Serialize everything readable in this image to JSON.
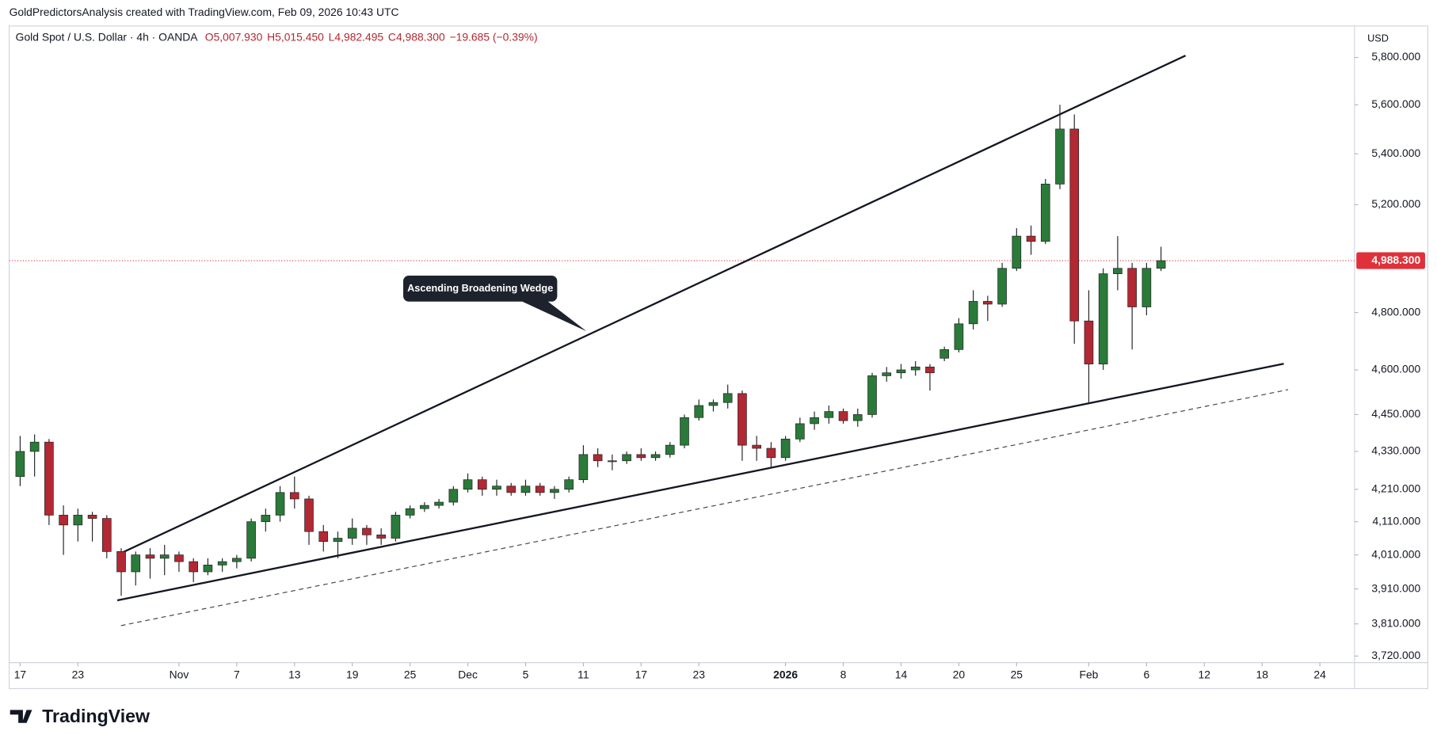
{
  "chart_data": {
    "type": "candlestick",
    "caption": "GoldPredictorsAnalysis created with TradingView.com, Feb 09, 2026 10:43 UTC",
    "title": "Gold Spot / U.S. Dollar · 4h · OANDA",
    "legend_values": [
      "O5,007.930",
      "H5,015.450",
      "L4,982.495",
      "C4,988.300",
      "−19.685 (−0.39%)"
    ],
    "currency": "USD",
    "annotation": "Ascending Broadening Wedge",
    "footer_brand": "TradingView",
    "log_scale": true,
    "grid": false,
    "up_color": "#2a7a3a",
    "down_color": "#b22833",
    "x": [
      0,
      1,
      2,
      3,
      4,
      5,
      6,
      7,
      8,
      9,
      10,
      11,
      12,
      13,
      14,
      15,
      16,
      17,
      18,
      19,
      20,
      21,
      22,
      23,
      24,
      25,
      26,
      27,
      28,
      29,
      30,
      31,
      32,
      33,
      34,
      35,
      36,
      37,
      38,
      39,
      40,
      41,
      42,
      43,
      44,
      45,
      46,
      47,
      48,
      49,
      50,
      51,
      52,
      53,
      54,
      55,
      56,
      57,
      58,
      59,
      60,
      61,
      62,
      63,
      64,
      65,
      66,
      67,
      68,
      69,
      70,
      71,
      72,
      73,
      74,
      75,
      76,
      77,
      78,
      79
    ],
    "open": [
      4250,
      4330,
      4360,
      4130,
      4100,
      4130,
      4120,
      4020,
      3960,
      4010,
      4000,
      4010,
      3990,
      3960,
      3980,
      3990,
      4000,
      4110,
      4130,
      4200,
      4180,
      4080,
      4050,
      4060,
      4090,
      4070,
      4060,
      4130,
      4150,
      4160,
      4170,
      4210,
      4240,
      4210,
      4220,
      4200,
      4220,
      4200,
      4210,
      4240,
      4320,
      4300,
      4300,
      4320,
      4310,
      4320,
      4350,
      4440,
      4480,
      4490,
      4520,
      4350,
      4340,
      4310,
      4370,
      4420,
      4440,
      4460,
      4430,
      4450,
      4580,
      4590,
      4600,
      4610,
      4640,
      4670,
      4760,
      4840,
      4830,
      4960,
      5080,
      5060,
      5280,
      5500,
      4770,
      4620,
      4940,
      4960,
      4820,
      4960
    ],
    "high": [
      4380,
      4385,
      4370,
      4160,
      4150,
      4140,
      4130,
      4030,
      4020,
      4030,
      4040,
      4020,
      4000,
      4000,
      4000,
      4010,
      4120,
      4150,
      4220,
      4250,
      4190,
      4100,
      4080,
      4120,
      4100,
      4090,
      4140,
      4160,
      4170,
      4180,
      4220,
      4260,
      4250,
      4240,
      4230,
      4240,
      4230,
      4220,
      4250,
      4350,
      4340,
      4320,
      4330,
      4340,
      4330,
      4360,
      4450,
      4500,
      4500,
      4550,
      4530,
      4380,
      4360,
      4380,
      4440,
      4460,
      4480,
      4470,
      4470,
      4590,
      4610,
      4620,
      4630,
      4620,
      4680,
      4780,
      4880,
      4860,
      4980,
      5110,
      5120,
      5300,
      5600,
      5560,
      4880,
      4960,
      5080,
      4980,
      4980,
      5040
    ],
    "low": [
      4220,
      4250,
      4100,
      4010,
      4050,
      4050,
      4000,
      3890,
      3920,
      3940,
      3950,
      3960,
      3930,
      3950,
      3960,
      3970,
      3990,
      4080,
      4110,
      4150,
      4040,
      4020,
      4000,
      4040,
      4040,
      4040,
      4050,
      4120,
      4140,
      4150,
      4160,
      4200,
      4190,
      4190,
      4190,
      4190,
      4190,
      4180,
      4200,
      4230,
      4280,
      4270,
      4290,
      4300,
      4300,
      4310,
      4340,
      4430,
      4460,
      4470,
      4300,
      4300,
      4280,
      4300,
      4360,
      4400,
      4420,
      4420,
      4410,
      4440,
      4560,
      4570,
      4580,
      4530,
      4630,
      4660,
      4740,
      4770,
      4820,
      4950,
      5010,
      5050,
      5260,
      4690,
      4490,
      4600,
      4880,
      4670,
      4790,
      4950
    ],
    "close": [
      4330,
      4360,
      4130,
      4100,
      4130,
      4120,
      4020,
      3960,
      4010,
      4000,
      4010,
      3990,
      3960,
      3980,
      3990,
      4000,
      4110,
      4130,
      4200,
      4180,
      4080,
      4050,
      4060,
      4090,
      4070,
      4060,
      4130,
      4150,
      4160,
      4170,
      4210,
      4240,
      4210,
      4220,
      4200,
      4220,
      4200,
      4210,
      4240,
      4320,
      4300,
      4300,
      4320,
      4310,
      4320,
      4350,
      4440,
      4480,
      4490,
      4520,
      4350,
      4340,
      4310,
      4370,
      4420,
      4440,
      4460,
      4430,
      4450,
      4580,
      4590,
      4600,
      4610,
      4590,
      4670,
      4760,
      4840,
      4830,
      4960,
      5080,
      5060,
      5280,
      5500,
      4770,
      4620,
      4940,
      4960,
      4820,
      4960,
      4988.3
    ],
    "xlim": [
      -0.76,
      92.4
    ],
    "xticks": [
      {
        "value": 0,
        "label": "17"
      },
      {
        "value": 4,
        "label": "23"
      },
      {
        "value": 11,
        "label": "Nov"
      },
      {
        "value": 15,
        "label": "7"
      },
      {
        "value": 19,
        "label": "13"
      },
      {
        "value": 23,
        "label": "19"
      },
      {
        "value": 27,
        "label": "25"
      },
      {
        "value": 31,
        "label": "Dec"
      },
      {
        "value": 35,
        "label": "5"
      },
      {
        "value": 39,
        "label": "11"
      },
      {
        "value": 43,
        "label": "17"
      },
      {
        "value": 47,
        "label": "23"
      },
      {
        "value": 53,
        "label": "2026"
      },
      {
        "value": 57,
        "label": "8"
      },
      {
        "value": 61,
        "label": "14"
      },
      {
        "value": 65,
        "label": "20"
      },
      {
        "value": 69,
        "label": "25"
      },
      {
        "value": 74,
        "label": "Feb"
      },
      {
        "value": 78,
        "label": "6"
      },
      {
        "value": 82,
        "label": "12"
      },
      {
        "value": 86,
        "label": "18"
      },
      {
        "value": 90,
        "label": "24"
      }
    ],
    "ylim": [
      3702,
      5937
    ],
    "yticks": [
      {
        "value": 5800,
        "label": "5,800.000"
      },
      {
        "value": 5600,
        "label": "5,600.000"
      },
      {
        "value": 5400,
        "label": "5,400.000"
      },
      {
        "value": 5200,
        "label": "5,200.000"
      },
      {
        "value": 4800,
        "label": "4,800.000"
      },
      {
        "value": 4600,
        "label": "4,600.000"
      },
      {
        "value": 4450,
        "label": "4,450.000"
      },
      {
        "value": 4330,
        "label": "4,330.000"
      },
      {
        "value": 4210,
        "label": "4,210.000"
      },
      {
        "value": 4110,
        "label": "4,110.000"
      },
      {
        "value": 4010,
        "label": "4,010.000"
      },
      {
        "value": 3910,
        "label": "3,910.000"
      },
      {
        "value": 3810,
        "label": "3,810.000"
      },
      {
        "value": 3720,
        "label": "3,720.000"
      }
    ],
    "last_price": {
      "value": 4988.3,
      "label": "4,988.300"
    },
    "last_price_color": "#e0313b",
    "trendlines": [
      {
        "x": [
          6.73,
          80.7
        ],
        "y": [
          4010,
          5808
        ],
        "dashed": false
      },
      {
        "x": [
          6.73,
          87.5
        ],
        "y": [
          3877,
          4621
        ],
        "dashed": false
      },
      {
        "x": [
          6.98,
          87.8
        ],
        "y": [
          3805,
          4533
        ],
        "dashed": true
      }
    ]
  }
}
